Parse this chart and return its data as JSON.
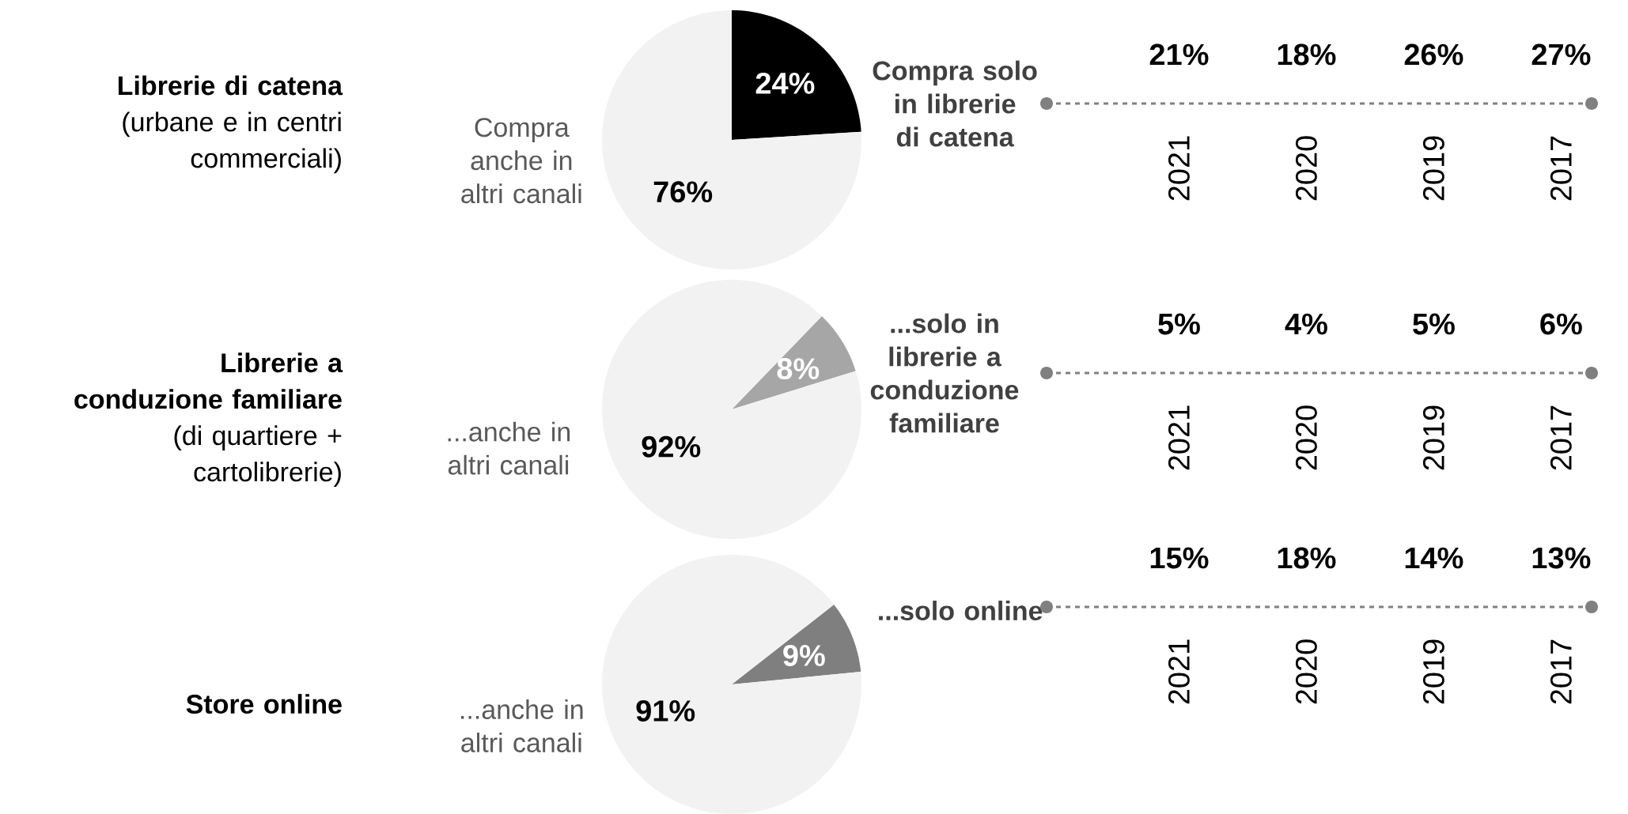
{
  "chart_data": [
    {
      "type": "pie",
      "title": "Librerie di catena",
      "subtitle": "(urbane e in centri commerciali)",
      "categories": [
        "Compra solo in librerie di catena",
        "Compra anche in altri canali"
      ],
      "values": [
        24,
        76
      ],
      "value_labels": [
        "24%",
        "76%"
      ],
      "colors": [
        "#000000",
        "#f2f2f2"
      ]
    },
    {
      "type": "other",
      "categories": [
        "2021",
        "2020",
        "2019",
        "2017"
      ],
      "values": [
        21,
        18,
        26,
        27
      ],
      "value_labels": [
        "21%",
        "18%",
        "26%",
        "27%"
      ],
      "color": "#808080"
    },
    {
      "type": "pie",
      "title": "Librerie a conduzione familiare",
      "subtitle": "(di quartiere + cartolibrerie)",
      "categories": [
        "...solo in librerie a conduzione familiare",
        "...anche in altri canali"
      ],
      "values": [
        8,
        92
      ],
      "value_labels": [
        "8%",
        "92%"
      ],
      "colors": [
        "#a6a6a6",
        "#f2f2f2"
      ]
    },
    {
      "type": "other",
      "categories": [
        "2021",
        "2020",
        "2019",
        "2017"
      ],
      "values": [
        5,
        4,
        5,
        6
      ],
      "value_labels": [
        "5%",
        "4%",
        "5%",
        "6%"
      ],
      "color": "#808080"
    },
    {
      "type": "pie",
      "title": "Store online",
      "categories": [
        "...solo online",
        "...anche in altri canali"
      ],
      "values": [
        9,
        91
      ],
      "value_labels": [
        "9%",
        "91%"
      ],
      "colors": [
        "#7f7f7f",
        "#f2f2f2"
      ]
    },
    {
      "type": "other",
      "categories": [
        "2021",
        "2020",
        "2019",
        "2017"
      ],
      "values": [
        15,
        18,
        14,
        13
      ],
      "value_labels": [
        "15%",
        "18%",
        "14%",
        "13%"
      ],
      "color": "#808080"
    }
  ]
}
